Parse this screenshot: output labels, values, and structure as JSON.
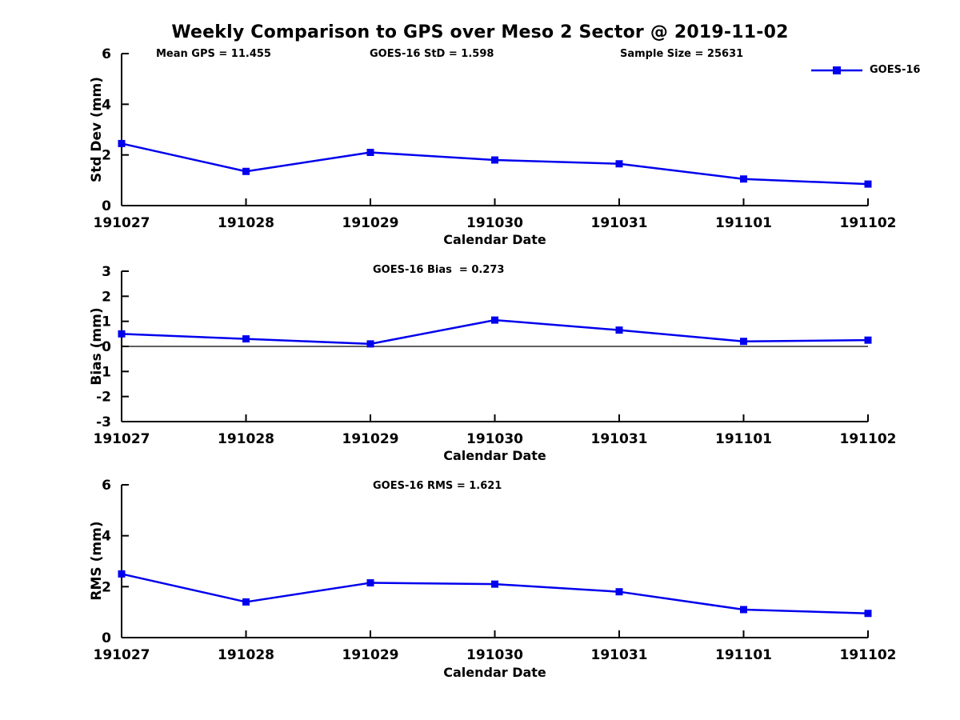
{
  "page": {
    "title": "Weekly Comparison to GPS over Meso 2 Sector @ 2019-11-02"
  },
  "style": {
    "line_color": "#0000ee",
    "axis_color": "#000000",
    "text_color": "#000000",
    "background": "#ffffff"
  },
  "chart_data": [
    {
      "type": "line",
      "id": "std-dev",
      "categories": [
        "191027",
        "191028",
        "191029",
        "191030",
        "191031",
        "191101",
        "191102"
      ],
      "series": [
        {
          "name": "GOES-16",
          "values": [
            2.45,
            1.35,
            2.1,
            1.8,
            1.65,
            1.05,
            0.85
          ]
        }
      ],
      "annotations": [
        "Mean GPS = 11.455",
        "GOES-16 StD = 1.598",
        "Sample Size = 25631"
      ],
      "xlabel": "Calendar Date",
      "ylabel": "Std Dev (mm)",
      "ylim": [
        0,
        6
      ],
      "yticks": [
        0,
        2,
        4,
        6
      ],
      "zero_line": false,
      "grid": false,
      "legend_position": "top-right",
      "marker": "square"
    },
    {
      "type": "line",
      "id": "bias",
      "categories": [
        "191027",
        "191028",
        "191029",
        "191030",
        "191031",
        "191101",
        "191102"
      ],
      "series": [
        {
          "name": "GOES-16",
          "values": [
            0.5,
            0.3,
            0.1,
            1.05,
            0.65,
            0.2,
            0.25
          ]
        }
      ],
      "annotation": "GOES-16 Bias  = 0.273",
      "xlabel": "Calendar Date",
      "ylabel": "Bias (mm)",
      "ylim": [
        -3,
        3
      ],
      "yticks": [
        -3,
        -2,
        -1,
        0,
        1,
        2,
        3
      ],
      "zero_line": true,
      "grid": false,
      "marker": "square"
    },
    {
      "type": "line",
      "id": "rms",
      "categories": [
        "191027",
        "191028",
        "191029",
        "191030",
        "191031",
        "191101",
        "191102"
      ],
      "series": [
        {
          "name": "GOES-16",
          "values": [
            2.5,
            1.4,
            2.15,
            2.1,
            1.8,
            1.1,
            0.95
          ]
        }
      ],
      "annotation": "GOES-16 RMS = 1.621",
      "xlabel": "Calendar Date",
      "ylabel": "RMS (mm)",
      "ylim": [
        0,
        6
      ],
      "yticks": [
        0,
        2,
        4,
        6
      ],
      "zero_line": false,
      "grid": false,
      "marker": "square"
    }
  ]
}
